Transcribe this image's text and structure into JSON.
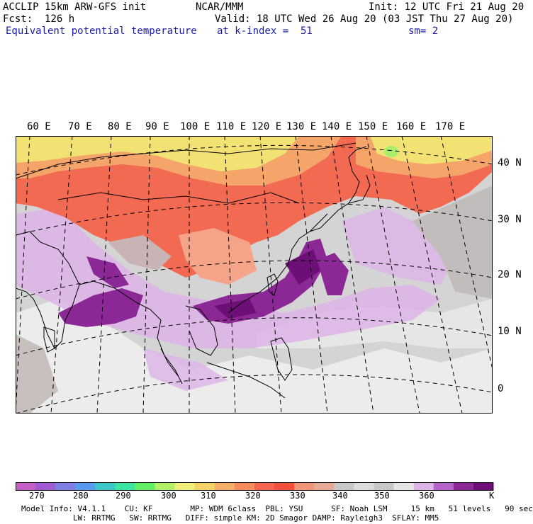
{
  "header": {
    "model": "ACCLIP 15km ARW-GFS init",
    "fcst": "Fcst:  126 h",
    "field": "Equivalent potential temperature",
    "center": "NCAR/MMM",
    "valid": "Valid: 18 UTC Wed 26 Aug 20 (03 JST Thu 27 Aug 20)",
    "level": "at k-index =  51",
    "init": "Init: 12 UTC Fri 21 Aug 20",
    "smooth": "sm= 2"
  },
  "map": {
    "lon_labels": [
      "60 E",
      "70 E",
      "80 E",
      "90 E",
      "100 E",
      "110 E",
      "120 E",
      "130 E",
      "140 E",
      "150 E",
      "160 E",
      "170 E"
    ],
    "lat_labels": [
      "40 N",
      "30 N",
      "20 N",
      "10 N",
      "0"
    ]
  },
  "colorbar": {
    "colors": [
      "#c55fc5",
      "#a05ad2",
      "#7f7fe6",
      "#5a9bf0",
      "#3cc8c8",
      "#3ce6a0",
      "#64f064",
      "#b4f064",
      "#f0f078",
      "#f5d264",
      "#f5af69",
      "#f58c5a",
      "#f56450",
      "#f0503c",
      "#f09678",
      "#e6aa96",
      "#c8c8c8",
      "#dcdcdc",
      "#c8c8c8",
      "#e6e6e6",
      "#dcb4e6",
      "#b464c8",
      "#8c2896",
      "#6e0f78"
    ],
    "ticks": [
      "270",
      "280",
      "290",
      "300",
      "310",
      "320",
      "330",
      "340",
      "350",
      "360"
    ],
    "unit": "K"
  },
  "footer": {
    "line1": "Model Info: V4.1.1    CU: KF        MP: WDM 6class  PBL: YSU      SF: Noah LSM     15 km   51 levels   90 sec",
    "line2": "           LW: RRTMG   SW: RRTMG   DIFF: simple KM: 2D Smagor DAMP: Rayleigh3  SFLAY: MM5"
  }
}
